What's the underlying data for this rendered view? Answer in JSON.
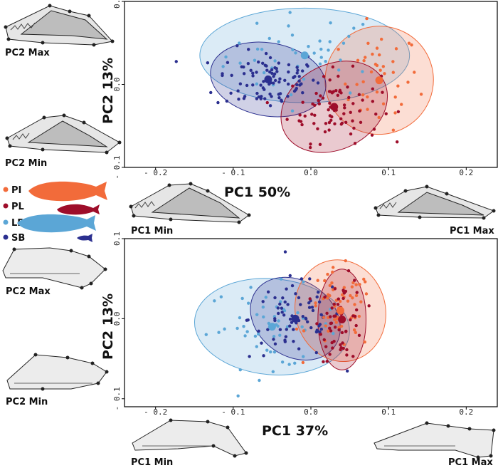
{
  "legend": {
    "items": [
      {
        "code": "PI",
        "color": "#f26b3a"
      },
      {
        "code": "PL",
        "color": "#9e0d2a"
      },
      {
        "code": "LB",
        "color": "#5ba6d6"
      },
      {
        "code": "SB",
        "color": "#2b2f8f"
      }
    ]
  },
  "shape_labels": {
    "top_pc2_max": "PC2 Max",
    "top_pc2_min": "PC2 Min",
    "top_pc1_min": "PC1 Min",
    "top_pc1_max": "PC1 Max",
    "bottom_pc2_max": "PC2 Max",
    "bottom_pc2_min": "PC2 Min",
    "bottom_pc1_min": "PC1 Min",
    "bottom_pc1_max": "PC1 Max"
  },
  "chart_data": [
    {
      "type": "scatter",
      "title": "",
      "xlabel": "PC1 50%",
      "ylabel": "PC2 13%",
      "xlim": [
        -0.24,
        0.24
      ],
      "ylim": [
        -0.1,
        0.1
      ],
      "xticks": [
        -0.2,
        -0.1,
        0.0,
        0.1,
        0.2
      ],
      "xtick_labels": [
        "- 0.2",
        "- 0.1",
        "0.0",
        "0.1",
        "0.2"
      ],
      "yticks": [
        -0.1,
        0.0,
        0.1
      ],
      "ytick_labels": [
        "- 0.1",
        "0.0",
        "0.1"
      ],
      "series": [
        {
          "name": "LB",
          "color": "#5ba6d6",
          "centroid": [
            -0.008,
            0.035
          ],
          "ellipse": {
            "rx": 0.135,
            "ry": 0.057,
            "angle": 0
          },
          "spread": [
            0.06,
            0.03
          ],
          "n": 42
        },
        {
          "name": "PI",
          "color": "#f26b3a",
          "centroid": [
            0.088,
            0.005
          ],
          "ellipse": {
            "rx": 0.07,
            "ry": 0.065,
            "angle": -35
          },
          "spread": [
            0.03,
            0.035
          ],
          "n": 40
        },
        {
          "name": "SB",
          "color": "#2b2f8f",
          "centroid": [
            -0.055,
            0.006
          ],
          "ellipse": {
            "rx": 0.075,
            "ry": 0.044,
            "angle": 10
          },
          "spread": [
            0.04,
            0.022
          ],
          "n": 95
        },
        {
          "name": "PL",
          "color": "#9e0d2a",
          "centroid": [
            0.03,
            -0.027
          ],
          "ellipse": {
            "rx": 0.072,
            "ry": 0.051,
            "angle": -28
          },
          "spread": [
            0.035,
            0.025
          ],
          "n": 80
        }
      ]
    },
    {
      "type": "scatter",
      "title": "",
      "xlabel": "PC1 37%",
      "ylabel": "PC2 13%",
      "xlim": [
        -0.24,
        0.24
      ],
      "ylim": [
        -0.11,
        0.1
      ],
      "xticks": [
        -0.2,
        -0.1,
        0.0,
        0.1,
        0.2
      ],
      "xtick_labels": [
        "- 0.2",
        "- 0.1",
        "0.0",
        "0.1",
        "0.2"
      ],
      "yticks": [
        -0.1,
        0.0,
        0.1
      ],
      "ytick_labels": [
        "- 0.1",
        "0.0",
        "0.1"
      ],
      "series": [
        {
          "name": "LB",
          "color": "#5ba6d6",
          "centroid": [
            -0.05,
            -0.01
          ],
          "ellipse": {
            "rx": 0.1,
            "ry": 0.06,
            "angle": 5
          },
          "spread": [
            0.05,
            0.03
          ],
          "n": 55
        },
        {
          "name": "SB",
          "color": "#2b2f8f",
          "centroid": [
            -0.02,
            0.0
          ],
          "ellipse": {
            "rx": 0.062,
            "ry": 0.047,
            "angle": 35
          },
          "spread": [
            0.035,
            0.03
          ],
          "n": 75
        },
        {
          "name": "PI",
          "color": "#f26b3a",
          "centroid": [
            0.038,
            0.01
          ],
          "ellipse": {
            "rx": 0.058,
            "ry": 0.064,
            "angle": -15
          },
          "spread": [
            0.025,
            0.03
          ],
          "n": 60
        },
        {
          "name": "PL",
          "color": "#9e0d2a",
          "centroid": [
            0.04,
            -0.001
          ],
          "ellipse": {
            "rx": 0.031,
            "ry": 0.063,
            "angle": 0
          },
          "spread": [
            0.017,
            0.03
          ],
          "n": 60
        }
      ]
    }
  ]
}
